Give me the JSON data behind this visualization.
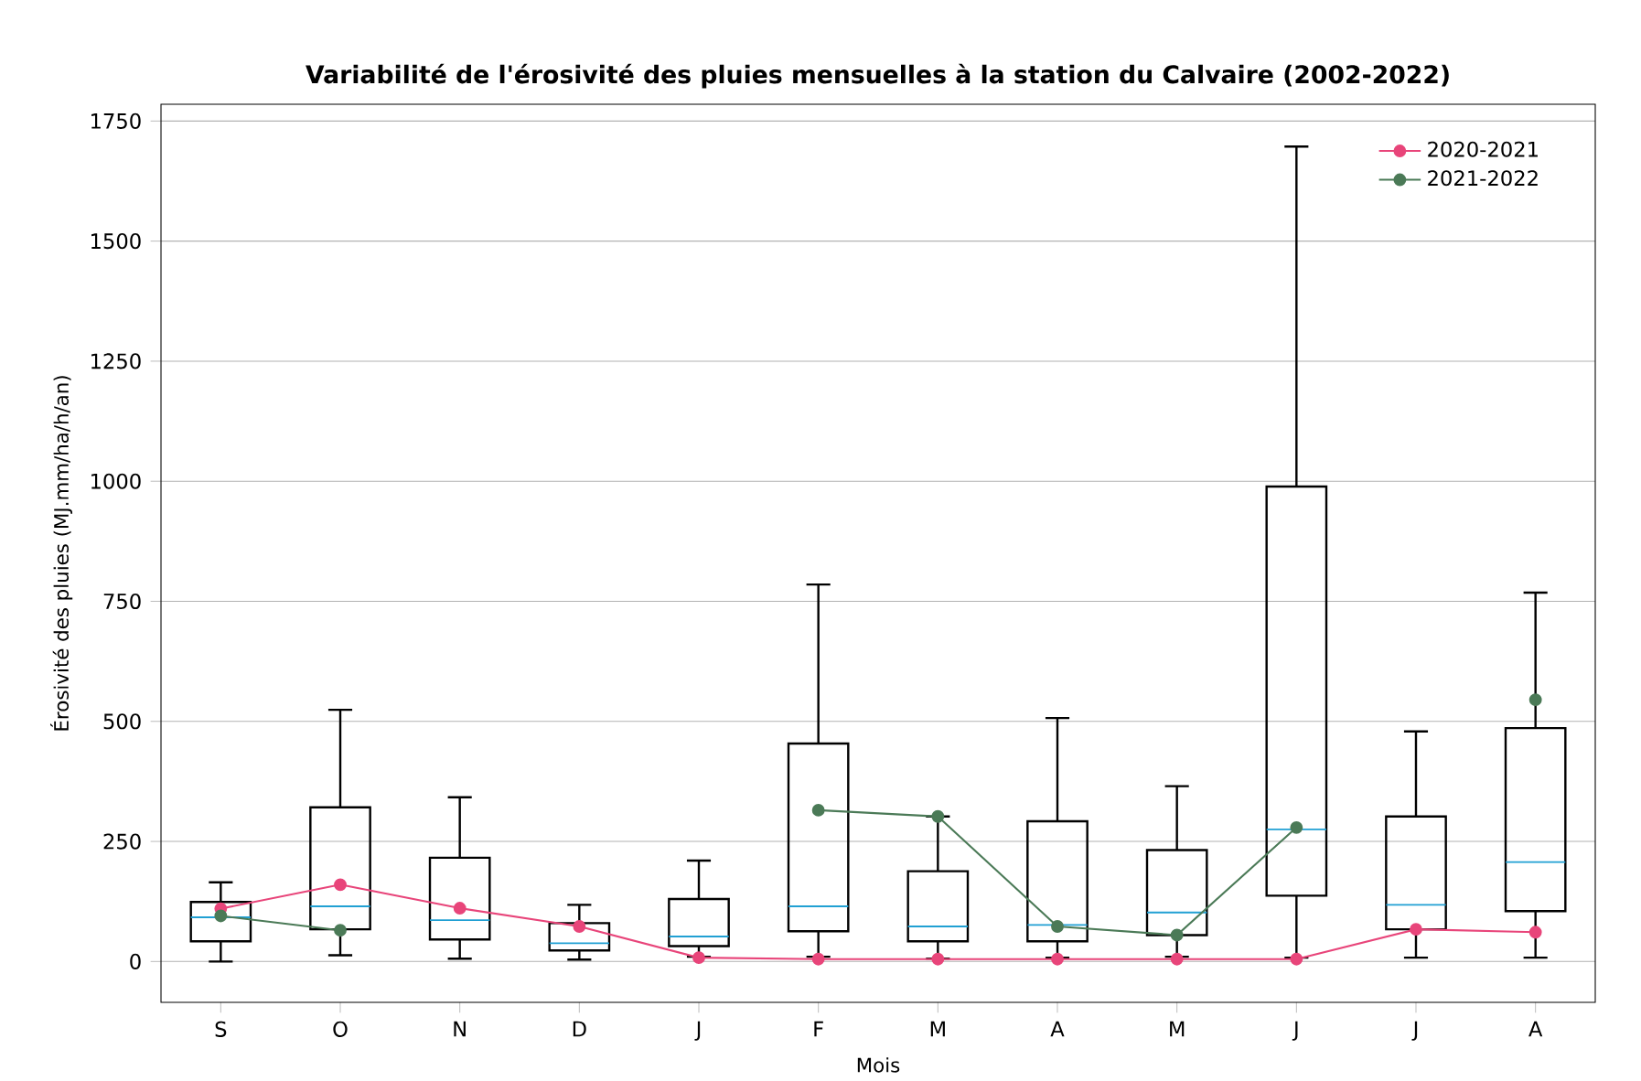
{
  "chart_data": {
    "type": "box",
    "title": "Variabilité de l'érosivité des pluies mensuelles à la station du Calvaire (2002-2022)",
    "xlabel": "Mois",
    "ylabel": "Érosivité des pluies (MJ.mm/ha/h/an)",
    "categories": [
      "S",
      "O",
      "N",
      "D",
      "J",
      "F",
      "M",
      "A",
      "M",
      "J",
      "J",
      "A"
    ],
    "boxes": [
      {
        "low": 0,
        "q1": 42,
        "median": 92,
        "q3": 124,
        "high": 165
      },
      {
        "low": 13,
        "q1": 67,
        "median": 115,
        "q3": 321,
        "high": 524
      },
      {
        "low": 6,
        "q1": 46,
        "median": 86,
        "q3": 216,
        "high": 342
      },
      {
        "low": 4,
        "q1": 23,
        "median": 38,
        "q3": 80,
        "high": 118
      },
      {
        "low": 10,
        "q1": 32,
        "median": 52,
        "q3": 130,
        "high": 210
      },
      {
        "low": 10,
        "q1": 63,
        "median": 115,
        "q3": 454,
        "high": 785
      },
      {
        "low": 6,
        "q1": 42,
        "median": 73,
        "q3": 188,
        "high": 302
      },
      {
        "low": 8,
        "q1": 42,
        "median": 76,
        "q3": 292,
        "high": 507
      },
      {
        "low": 10,
        "q1": 55,
        "median": 102,
        "q3": 232,
        "high": 365
      },
      {
        "low": 8,
        "q1": 137,
        "median": 275,
        "q3": 989,
        "high": 1697
      },
      {
        "low": 8,
        "q1": 67,
        "median": 118,
        "q3": 302,
        "high": 479
      },
      {
        "low": 8,
        "q1": 105,
        "median": 207,
        "q3": 486,
        "high": 768
      }
    ],
    "series": [
      {
        "name": "2020-2021",
        "type": "line",
        "color": "#e8457a",
        "values": [
          110,
          160,
          111,
          73,
          8,
          5,
          5,
          5,
          5,
          5,
          67,
          61
        ]
      },
      {
        "name": "2021-2022",
        "type": "line",
        "color": "#4b7a57",
        "values": [
          95,
          65,
          null,
          null,
          null,
          315,
          302,
          73,
          55,
          279,
          null,
          545
        ]
      }
    ],
    "ylim": [
      -85,
      1785
    ],
    "yticks": [
      0,
      250,
      500,
      750,
      1000,
      1250,
      1500,
      1750
    ],
    "grid": "y",
    "legend": "top right",
    "marker": "circle",
    "line_style": "solid"
  }
}
